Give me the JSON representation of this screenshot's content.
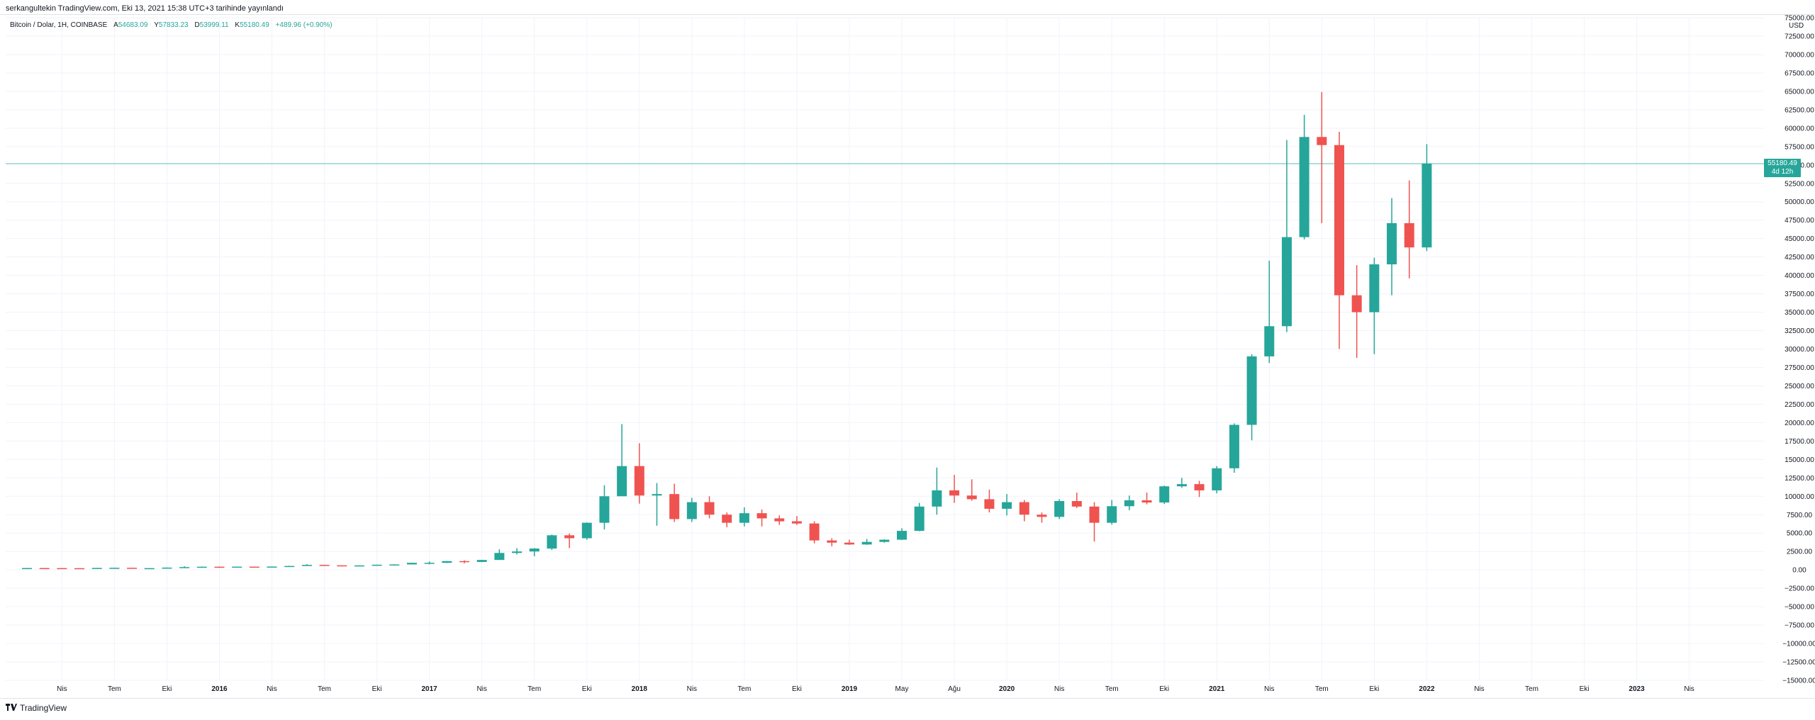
{
  "header": {
    "published": "serkangultekin TradingView.com, Eki 13, 2021 15:38 UTC+3 tarihinde yayınlandı"
  },
  "legend": {
    "symbol": "Bitcoin / Dolar, 1H, COINBASE",
    "open_label": "A",
    "open": "54683.09",
    "high_label": "Y",
    "high": "57833.23",
    "low_label": "D",
    "low": "53999.11",
    "close_label": "K",
    "close": "55180.49",
    "change": "+489.96 (+0.90%)"
  },
  "price_axis": {
    "currency": "USD",
    "labels": [
      "75000.00",
      "72500.00",
      "70000.00",
      "67500.00",
      "65000.00",
      "62500.00",
      "60000.00",
      "57500.00",
      "55000.00",
      "52500.00",
      "50000.00",
      "47500.00",
      "45000.00",
      "42500.00",
      "40000.00",
      "37500.00",
      "35000.00",
      "32500.00",
      "30000.00",
      "27500.00",
      "25000.00",
      "22500.00",
      "20000.00",
      "17500.00",
      "15000.00",
      "12500.00",
      "10000.00",
      "7500.00",
      "5000.00",
      "2500.00",
      "0.00",
      "−2500.00",
      "−5000.00",
      "−7500.00",
      "−10000.00",
      "−12500.00",
      "−15000.00"
    ],
    "last_price": "55180.49",
    "countdown": "4d 12h"
  },
  "time_axis": {
    "labels": [
      {
        "text": "Nis",
        "year": false
      },
      {
        "text": "Tem",
        "year": false
      },
      {
        "text": "Eki",
        "year": false
      },
      {
        "text": "2016",
        "year": true
      },
      {
        "text": "Nis",
        "year": false
      },
      {
        "text": "Tem",
        "year": false
      },
      {
        "text": "Eki",
        "year": false
      },
      {
        "text": "2017",
        "year": true
      },
      {
        "text": "Nis",
        "year": false
      },
      {
        "text": "Tem",
        "year": false
      },
      {
        "text": "Eki",
        "year": false
      },
      {
        "text": "2018",
        "year": true
      },
      {
        "text": "Nis",
        "year": false
      },
      {
        "text": "Tem",
        "year": false
      },
      {
        "text": "Eki",
        "year": false
      },
      {
        "text": "2019",
        "year": true
      },
      {
        "text": "May",
        "year": false
      },
      {
        "text": "Ağu",
        "year": false
      },
      {
        "text": "2020",
        "year": true
      },
      {
        "text": "Nis",
        "year": false
      },
      {
        "text": "Tem",
        "year": false
      },
      {
        "text": "Eki",
        "year": false
      },
      {
        "text": "2021",
        "year": true
      },
      {
        "text": "Nis",
        "year": false
      },
      {
        "text": "Tem",
        "year": false
      },
      {
        "text": "Eki",
        "year": false
      },
      {
        "text": "2022",
        "year": true
      },
      {
        "text": "Nis",
        "year": false
      },
      {
        "text": "Tem",
        "year": false
      },
      {
        "text": "Eki",
        "year": false
      },
      {
        "text": "2023",
        "year": true
      },
      {
        "text": "Nis",
        "year": false
      }
    ]
  },
  "colors": {
    "up": "#26a69a",
    "down": "#ef5350",
    "grid": "#f0f3fa",
    "axis_text": "#131722"
  },
  "footer": {
    "brand": "TradingView",
    "logo_icon": "tradingview-logo-icon"
  },
  "chart_data": {
    "type": "candlestick",
    "series_label": "Bitcoin / Dolar, 1H, COINBASE",
    "y_range": [
      -15000,
      75000
    ],
    "x_start": "2015-02",
    "x_unit": "month",
    "months": [
      "2015-02",
      "2015-03",
      "2015-04",
      "2015-05",
      "2015-06",
      "2015-07",
      "2015-08",
      "2015-09",
      "2015-10",
      "2015-11",
      "2015-12",
      "2016-01",
      "2016-02",
      "2016-03",
      "2016-04",
      "2016-05",
      "2016-06",
      "2016-07",
      "2016-08",
      "2016-09",
      "2016-10",
      "2016-11",
      "2016-12",
      "2017-01",
      "2017-02",
      "2017-03",
      "2017-04",
      "2017-05",
      "2017-06",
      "2017-07",
      "2017-08",
      "2017-09",
      "2017-10",
      "2017-11",
      "2017-12",
      "2018-01",
      "2018-02",
      "2018-03",
      "2018-04",
      "2018-05",
      "2018-06",
      "2018-07",
      "2018-08",
      "2018-09",
      "2018-10",
      "2018-11",
      "2018-12",
      "2019-01",
      "2019-02",
      "2019-03",
      "2019-04",
      "2019-05",
      "2019-06",
      "2019-07",
      "2019-08",
      "2019-09",
      "2019-10",
      "2019-11",
      "2019-12",
      "2020-01",
      "2020-02",
      "2020-03",
      "2020-04",
      "2020-05",
      "2020-06",
      "2020-07",
      "2020-08",
      "2020-09",
      "2020-10",
      "2020-11",
      "2020-12",
      "2021-01",
      "2021-02",
      "2021-03",
      "2021-04",
      "2021-05",
      "2021-06",
      "2021-07",
      "2021-08",
      "2021-09",
      "2021-10"
    ],
    "close": [
      250,
      245,
      235,
      230,
      265,
      285,
      230,
      240,
      310,
      380,
      430,
      370,
      440,
      420,
      450,
      530,
      680,
      620,
      580,
      610,
      700,
      740,
      960,
      960,
      1190,
      1080,
      1350,
      2300,
      2500,
      2900,
      4700,
      4300,
      6400,
      10000,
      14100,
      10100,
      10300,
      6900,
      9200,
      7500,
      6400,
      7700,
      7000,
      6600,
      6300,
      4000,
      3700,
      3450,
      3800,
      4100,
      5300,
      8600,
      10800,
      10100,
      9600,
      8300,
      9200,
      7500,
      7200,
      9350,
      8600,
      6400,
      8650,
      9450,
      9150,
      11350,
      11650,
      10800,
      13800,
      19700,
      29000,
      33100,
      45200,
      58800,
      57700,
      37300,
      35000,
      41500,
      47100,
      43800,
      55180
    ],
    "high": [
      270,
      260,
      260,
      250,
      270,
      300,
      300,
      250,
      330,
      500,
      460,
      470,
      440,
      440,
      460,
      560,
      780,
      700,
      620,
      620,
      720,
      760,
      980,
      1150,
      1200,
      1300,
      1360,
      2800,
      2950,
      2950,
      4800,
      4950,
      6450,
      11500,
      19800,
      17200,
      11800,
      11700,
      9800,
      10000,
      7800,
      8500,
      8200,
      7400,
      7300,
      6600,
      4300,
      4100,
      4200,
      4150,
      5650,
      9100,
      13900,
      12900,
      12300,
      10900,
      10300,
      9500,
      7800,
      9600,
      10500,
      9200,
      9500,
      10100,
      10500,
      11450,
      12500,
      12100,
      14100,
      19900,
      29300,
      42000,
      58400,
      61800,
      64900,
      59500,
      41400,
      42400,
      50500,
      52900,
      57833
    ],
    "low": [
      205,
      225,
      215,
      225,
      220,
      265,
      200,
      225,
      235,
      300,
      350,
      360,
      360,
      390,
      410,
      440,
      530,
      590,
      540,
      580,
      600,
      690,
      740,
      760,
      930,
      890,
      1050,
      1350,
      2100,
      1850,
      2700,
      2950,
      4100,
      5500,
      10100,
      9000,
      6000,
      6500,
      6500,
      7000,
      5800,
      5900,
      5900,
      6100,
      6100,
      3600,
      3200,
      3400,
      3400,
      3700,
      4050,
      5250,
      7500,
      9100,
      9400,
      7800,
      7400,
      6600,
      6400,
      6900,
      8400,
      3850,
      6150,
      8100,
      8900,
      8950,
      11150,
      9900,
      10400,
      13200,
      17600,
      28100,
      32300,
      44900,
      47100,
      30000,
      28800,
      29300,
      37300,
      39600,
      43300
    ],
    "open": [
      220,
      250,
      245,
      235,
      230,
      265,
      285,
      230,
      240,
      310,
      380,
      430,
      370,
      440,
      420,
      450,
      530,
      680,
      620,
      580,
      610,
      700,
      740,
      960,
      960,
      1190,
      1080,
      1350,
      2300,
      2500,
      2900,
      4700,
      4300,
      6400,
      10000,
      14100,
      10100,
      10300,
      6900,
      9200,
      7500,
      6400,
      7700,
      7000,
      6600,
      6300,
      4000,
      3700,
      3450,
      3800,
      4100,
      5300,
      8600,
      10800,
      10100,
      9600,
      8300,
      9200,
      7500,
      7200,
      9350,
      8600,
      6400,
      8650,
      9450,
      9150,
      11350,
      11650,
      10800,
      13800,
      19700,
      29000,
      33100,
      45200,
      58800,
      57700,
      37300,
      35000,
      41500,
      47100,
      43800
    ]
  }
}
